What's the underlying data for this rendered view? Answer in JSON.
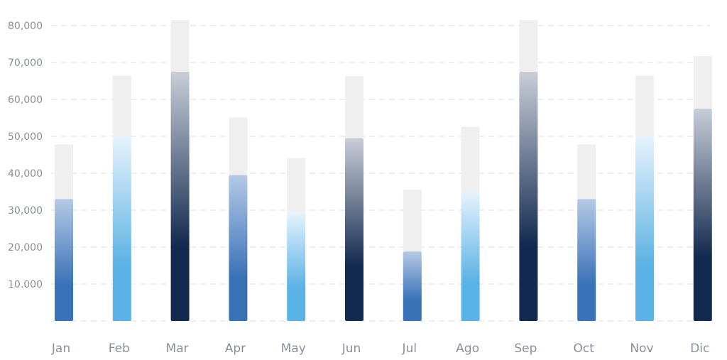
{
  "chart_data": {
    "type": "bar",
    "categories": [
      "Jan",
      "Feb",
      "Mar",
      "Apr",
      "May",
      "Jun",
      "Jul",
      "Ago",
      "Sep",
      "Oct",
      "Nov",
      "Dic"
    ],
    "series": [
      {
        "values": [
          33000,
          50000,
          67500,
          39500,
          29500,
          49500,
          18800,
          35000,
          67500,
          33000,
          50000,
          57500
        ]
      },
      {
        "values": [
          47800,
          66400,
          81500,
          55100,
          44100,
          66300,
          35500,
          52600,
          81500,
          47800,
          66400,
          71700
        ]
      }
    ],
    "bar_gradients": [
      "blue",
      "cyan",
      "navy",
      "blue",
      "cyan",
      "navy",
      "blue",
      "cyan",
      "navy",
      "blue",
      "cyan",
      "navy"
    ],
    "colors": {
      "blue_bottom": "#3a72b8",
      "blue_top": "#b5c9e6",
      "cyan_bottom": "#5bb2e4",
      "cyan_top": "#e6f3fc",
      "navy_bottom": "#122a4f",
      "navy_top": "#c9ced8",
      "cap": "#efefef",
      "grid": "#dcdfe4",
      "label": "#8a909b"
    },
    "ylim": [
      0,
      80000
    ],
    "yticks": [
      10000,
      20000,
      30000,
      40000,
      50000,
      60000,
      70000,
      80000
    ],
    "ytick_labels": [
      "10.000",
      "20,000",
      "30,000",
      "40,000",
      "50,000",
      "60,000",
      "70,000",
      "80,000"
    ],
    "grid": true,
    "xlabel": "",
    "ylabel": "",
    "title": ""
  }
}
